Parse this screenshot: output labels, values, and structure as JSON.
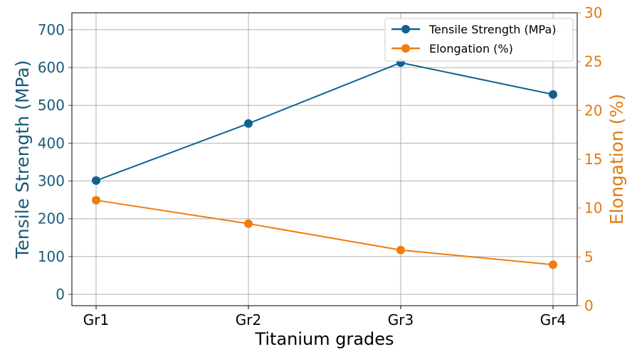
{
  "chart_data": {
    "type": "line",
    "categories": [
      "Gr1",
      "Gr2",
      "Gr3",
      "Gr4"
    ],
    "xlabel": "Titanium grades",
    "y_left": {
      "label": "Tensile Strength (MPa)",
      "lim": [
        -30,
        745
      ],
      "ticks": [
        0,
        100,
        200,
        300,
        400,
        500,
        600,
        700
      ],
      "color": "#0f6290"
    },
    "y_right": {
      "label": "Elongation (%)",
      "lim": [
        0,
        30
      ],
      "ticks": [
        0,
        5,
        10,
        15,
        20,
        25,
        30
      ],
      "color": "#f07c10"
    },
    "grid": true,
    "legend_position": "top-right",
    "series": [
      {
        "name": "Tensile Strength (MPa)",
        "axis": "left",
        "color": "#0f6290",
        "values": [
          301,
          452,
          613,
          529
        ]
      },
      {
        "name": "Elongation (%)",
        "axis": "right",
        "color": "#f07c10",
        "values": [
          10.8,
          8.4,
          5.7,
          4.2
        ]
      }
    ]
  }
}
